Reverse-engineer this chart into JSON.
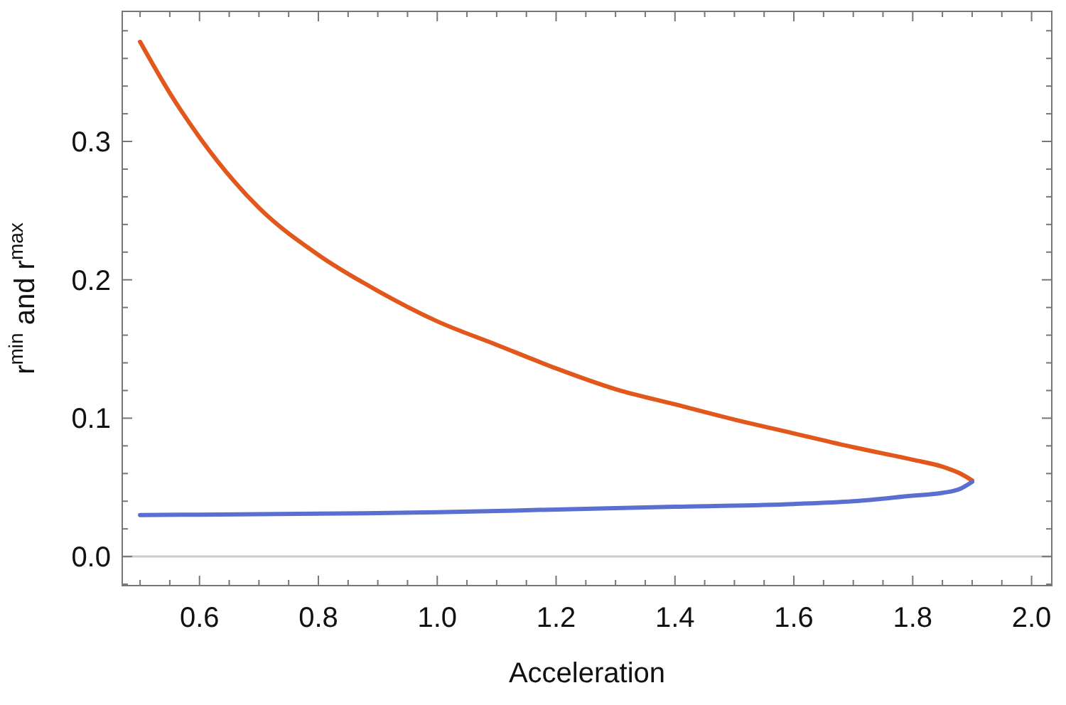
{
  "chart_data": {
    "type": "line",
    "xlabel": "Acceleration",
    "ylabel": "r$^{min}$ and r$^{max}$",
    "xlim": [
      0.47,
      2.034
    ],
    "ylim": [
      -0.021,
      0.394
    ],
    "xticks": [
      {
        "value": 0.5,
        "label": null
      },
      {
        "value": 0.55,
        "label": null
      },
      0.6,
      {
        "value": 0.65,
        "label": null
      },
      {
        "value": 0.7,
        "label": null
      },
      {
        "value": 0.75,
        "label": null
      },
      0.8,
      {
        "value": 0.85,
        "label": null
      },
      {
        "value": 0.9,
        "label": null
      },
      {
        "value": 0.95,
        "label": null
      },
      {
        "value": 1,
        "label": "1.0"
      },
      {
        "value": 1.05,
        "label": null
      },
      {
        "value": 1.1,
        "label": null
      },
      {
        "value": 1.15,
        "label": null
      },
      1.2,
      {
        "value": 1.25,
        "label": null
      },
      {
        "value": 1.3,
        "label": null
      },
      {
        "value": 1.35,
        "label": null
      },
      1.4,
      {
        "value": 1.45,
        "label": null
      },
      {
        "value": 1.5,
        "label": null
      },
      {
        "value": 1.55,
        "label": null
      },
      1.6,
      {
        "value": 1.65,
        "label": null
      },
      {
        "value": 1.7,
        "label": null
      },
      {
        "value": 1.75,
        "label": null
      },
      1.8,
      {
        "value": 1.85,
        "label": null
      },
      {
        "value": 1.9,
        "label": null
      },
      {
        "value": 1.95,
        "label": null
      },
      {
        "value": 2,
        "label": "2.0"
      }
    ],
    "yticks": [
      {
        "value": -0.02,
        "label": null
      },
      {
        "value": 0,
        "label": "0.0"
      },
      {
        "value": 0.02,
        "label": null
      },
      {
        "value": 0.04,
        "label": null
      },
      {
        "value": 0.06,
        "label": null
      },
      {
        "value": 0.08,
        "label": null
      },
      0.1,
      {
        "value": 0.12,
        "label": null
      },
      {
        "value": 0.14,
        "label": null
      },
      {
        "value": 0.16,
        "label": null
      },
      {
        "value": 0.18,
        "label": null
      },
      0.2,
      {
        "value": 0.22,
        "label": null
      },
      {
        "value": 0.24,
        "label": null
      },
      {
        "value": 0.26,
        "label": null
      },
      {
        "value": 0.28,
        "label": null
      },
      0.3,
      {
        "value": 0.32,
        "label": null
      },
      {
        "value": 0.34,
        "label": null
      },
      {
        "value": 0.36,
        "label": null
      },
      {
        "value": 0.38,
        "label": null
      }
    ],
    "marker": "none",
    "line_style": "solid",
    "ref_lines": [
      {
        "axis": "y",
        "value": 0,
        "color": "#cccccc"
      }
    ],
    "series": [
      {
        "color": "#e2571b",
        "x": [
          0.5,
          0.55,
          0.6,
          0.7,
          0.8,
          0.9,
          1.0,
          1.1,
          1.2,
          1.3,
          1.4,
          1.5,
          1.6,
          1.7,
          1.8,
          1.85,
          1.88,
          1.9
        ],
        "values": [
          0.372,
          0.335,
          0.303,
          0.252,
          0.218,
          0.192,
          0.17,
          0.153,
          0.136,
          0.121,
          0.11,
          0.099,
          0.089,
          0.079,
          0.07,
          0.065,
          0.06,
          0.055
        ]
      },
      {
        "color": "#5a6fcf",
        "x": [
          0.5,
          0.8,
          1.0,
          1.2,
          1.4,
          1.6,
          1.7,
          1.8,
          1.85,
          1.88,
          1.9
        ],
        "values": [
          0.03,
          0.031,
          0.032,
          0.034,
          0.036,
          0.038,
          0.04,
          0.044,
          0.046,
          0.049,
          0.054
        ]
      }
    ]
  }
}
